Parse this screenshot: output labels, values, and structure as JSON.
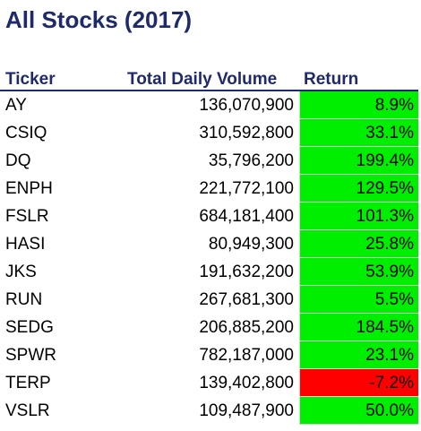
{
  "title": "All Stocks (2017)",
  "headers": {
    "ticker": "Ticker",
    "volume": "Total Daily Volume",
    "return": "Return"
  },
  "colors": {
    "title": "#1f2a6b",
    "positive": "#00ee00",
    "negative": "#ff0000"
  },
  "rows": [
    {
      "ticker": "AY",
      "volume": "136,070,900",
      "return": "8.9%",
      "sign": "pos"
    },
    {
      "ticker": "CSIQ",
      "volume": "310,592,800",
      "return": "33.1%",
      "sign": "pos"
    },
    {
      "ticker": "DQ",
      "volume": "35,796,200",
      "return": "199.4%",
      "sign": "pos"
    },
    {
      "ticker": "ENPH",
      "volume": "221,772,100",
      "return": "129.5%",
      "sign": "pos"
    },
    {
      "ticker": "FSLR",
      "volume": "684,181,400",
      "return": "101.3%",
      "sign": "pos"
    },
    {
      "ticker": "HASI",
      "volume": "80,949,300",
      "return": "25.8%",
      "sign": "pos"
    },
    {
      "ticker": "JKS",
      "volume": "191,632,200",
      "return": "53.9%",
      "sign": "pos"
    },
    {
      "ticker": "RUN",
      "volume": "267,681,300",
      "return": "5.5%",
      "sign": "pos"
    },
    {
      "ticker": "SEDG",
      "volume": "206,885,200",
      "return": "184.5%",
      "sign": "pos"
    },
    {
      "ticker": "SPWR",
      "volume": "782,187,000",
      "return": "23.1%",
      "sign": "pos"
    },
    {
      "ticker": "TERP",
      "volume": "139,402,800",
      "return": "-7.2%",
      "sign": "neg"
    },
    {
      "ticker": "VSLR",
      "volume": "109,487,900",
      "return": "50.0%",
      "sign": "pos"
    }
  ]
}
